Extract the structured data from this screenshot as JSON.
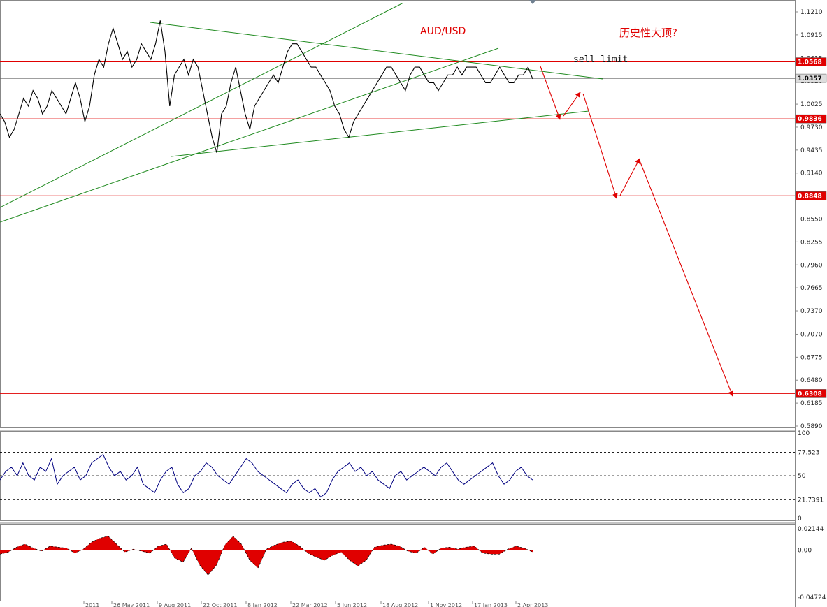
{
  "chart_data": [
    {
      "type": "line",
      "title": "AUD/USD",
      "annotations": [
        {
          "text": "AUD/USD",
          "color": "#e00000"
        },
        {
          "text": "历史性大顶?",
          "color": "#e00000"
        },
        {
          "text": "sell limit",
          "color": "#111111"
        }
      ],
      "y_ticks": [
        "1.1210",
        "1.0915",
        "1.0615",
        "1.0320",
        "1.0025",
        "0.9730",
        "0.9435",
        "0.9140",
        "0.8845",
        "0.8550",
        "0.8255",
        "0.7960",
        "0.7665",
        "0.7370",
        "0.7070",
        "0.6775",
        "0.6480",
        "0.6185",
        "0.5890"
      ],
      "ylim": [
        0.589,
        1.121
      ],
      "x_ticks": [
        "2011",
        "26 May 2011",
        "9 Aug 2011",
        "22 Oct 2011",
        "8 Jan 2012",
        "22 Mar 2012",
        "5 Jun 2012",
        "18 Aug 2012",
        "1 Nov 2012",
        "17 Jan 2013",
        "2 Apr 2013"
      ],
      "horizontal_levels": [
        {
          "value": 1.0568,
          "label": "1.0568",
          "color": "#e00000"
        },
        {
          "value": 1.0357,
          "label": "1.0357",
          "color": "#666666"
        },
        {
          "value": 0.9836,
          "label": "0.9836",
          "color": "#e00000"
        },
        {
          "value": 0.8848,
          "label": "0.8848",
          "color": "#e00000"
        },
        {
          "value": 0.6308,
          "label": "0.6308",
          "color": "#e00000"
        }
      ],
      "series": [
        {
          "values": [
            0.99,
            0.98,
            0.96,
            0.97,
            0.99,
            1.01,
            1.0,
            1.02,
            1.01,
            0.99,
            1.0,
            1.02,
            1.01,
            1.0,
            0.99,
            1.01,
            1.03,
            1.01,
            0.98,
            1.0,
            1.04,
            1.06,
            1.05,
            1.08,
            1.1,
            1.08,
            1.06,
            1.07,
            1.05,
            1.06,
            1.08,
            1.07,
            1.06,
            1.08,
            1.11,
            1.07,
            1.0,
            1.04,
            1.05,
            1.06,
            1.04,
            1.06,
            1.05,
            1.02,
            0.99,
            0.96,
            0.94,
            0.99,
            1.0,
            1.03,
            1.05,
            1.02,
            0.99,
            0.97,
            1.0,
            1.01,
            1.02,
            1.03,
            1.04,
            1.03,
            1.05,
            1.07,
            1.08,
            1.08,
            1.07,
            1.06,
            1.05,
            1.05,
            1.04,
            1.03,
            1.02,
            1.0,
            0.99,
            0.97,
            0.96,
            0.98,
            0.99,
            1.0,
            1.01,
            1.02,
            1.03,
            1.04,
            1.05,
            1.05,
            1.04,
            1.03,
            1.02,
            1.04,
            1.05,
            1.05,
            1.04,
            1.03,
            1.03,
            1.02,
            1.03,
            1.04,
            1.04,
            1.05,
            1.04,
            1.05,
            1.05,
            1.05,
            1.04,
            1.03,
            1.03,
            1.04,
            1.05,
            1.04,
            1.03,
            1.03,
            1.04,
            1.04,
            1.05,
            1.035
          ]
        },
        {
          "name": "projection",
          "color": "#e00000",
          "values": [
            1.05,
            0.98,
            1.02,
            0.8848,
            0.93,
            0.6308
          ]
        }
      ]
    },
    {
      "type": "line",
      "y_ticks": [
        "100",
        "77.523",
        "50",
        "21.7391",
        "0"
      ],
      "ylim": [
        0,
        100
      ],
      "reference_lines": [
        77.523,
        50,
        21.7391
      ],
      "series": [
        {
          "color": "#000080",
          "values": [
            45,
            55,
            60,
            50,
            65,
            50,
            45,
            60,
            55,
            70,
            40,
            50,
            55,
            60,
            45,
            50,
            65,
            70,
            75,
            60,
            50,
            55,
            45,
            50,
            60,
            40,
            35,
            30,
            45,
            55,
            60,
            40,
            30,
            35,
            50,
            55,
            65,
            60,
            50,
            45,
            40,
            50,
            60,
            70,
            65,
            55,
            50,
            45,
            40,
            35,
            30,
            40,
            45,
            35,
            30,
            35,
            25,
            30,
            45,
            55,
            60,
            65,
            55,
            60,
            50,
            55,
            45,
            40,
            35,
            50,
            55,
            45,
            50,
            55,
            60,
            55,
            50,
            60,
            65,
            55,
            45,
            40,
            45,
            50,
            55,
            60,
            65,
            50,
            40,
            45,
            55,
            60,
            50,
            45
          ]
        }
      ]
    },
    {
      "type": "area",
      "y_ticks": [
        "0.02144",
        "0.00",
        "-0.04724"
      ],
      "ylim": [
        -0.04724,
        0.02144
      ],
      "reference_lines": [
        0
      ],
      "series": [
        {
          "color": "#e00000",
          "values": [
            -0.004,
            -0.002,
            0.003,
            0.006,
            0.002,
            -0.001,
            0.004,
            0.003,
            0.002,
            -0.003,
            0.001,
            0.008,
            0.012,
            0.014,
            0.006,
            -0.002,
            0.001,
            -0.001,
            -0.003,
            0.004,
            0.006,
            -0.008,
            -0.012,
            0.002,
            -0.015,
            -0.025,
            -0.015,
            0.005,
            0.014,
            0.006,
            -0.01,
            -0.018,
            0.001,
            0.005,
            0.008,
            0.009,
            0.004,
            -0.003,
            -0.007,
            -0.01,
            -0.005,
            -0.002,
            -0.01,
            -0.016,
            -0.01,
            0.003,
            0.005,
            0.006,
            0.004,
            -0.001,
            -0.003,
            0.003,
            -0.004,
            0.002,
            0.003,
            0.001,
            0.003,
            0.004,
            -0.003,
            -0.004,
            -0.004,
            0.001,
            0.004,
            0.002,
            -0.002
          ]
        }
      ]
    }
  ]
}
